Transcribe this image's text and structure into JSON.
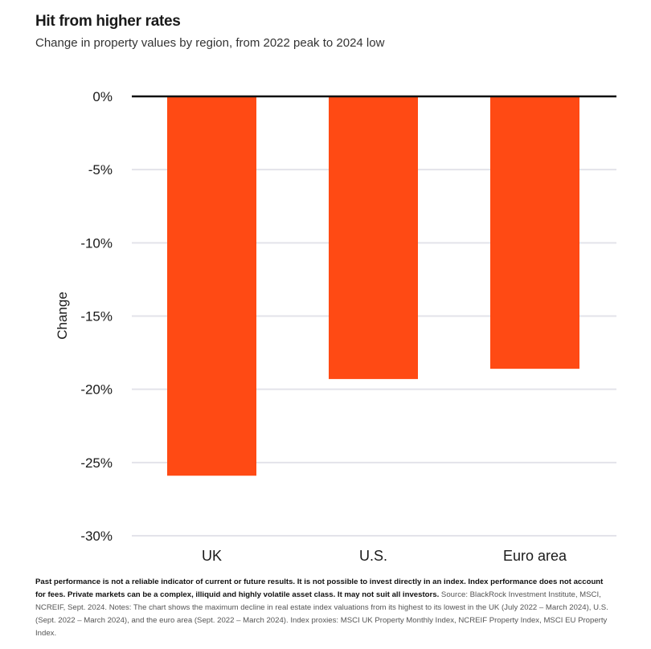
{
  "title": "Hit from higher rates",
  "subtitle": "Change in property values by region, from 2022 peak to 2024 low",
  "chart_data": {
    "type": "bar",
    "title": "Hit from higher rates",
    "subtitle": "Change in property values by region, from 2022 peak to 2024 low",
    "categories": [
      "UK",
      "U.S.",
      "Euro area"
    ],
    "values": [
      -25.9,
      -19.3,
      -18.6
    ],
    "xlabel": "",
    "ylabel": "Change",
    "ylim": [
      -30,
      0
    ],
    "yticks": [
      0,
      -5,
      -10,
      -15,
      -20,
      -25,
      -30
    ],
    "ytick_labels": [
      "0%",
      "-5%",
      "-10%",
      "-15%",
      "-20%",
      "-25%",
      "-30%"
    ],
    "grid": true,
    "bar_color": "#ff4a14",
    "legend": "none"
  },
  "notes": {
    "bold": "Past performance is not a reliable indicator of current or future results. It is not possible to invest directly in an index. Index performance does not account for fees. Private markets can be a complex, illiquid and highly volatile asset class. It may not suit all investors.",
    "regular": " Source: BlackRock Investment Institute, MSCI, NCREIF, Sept. 2024. Notes: The chart shows the maximum decline in real estate index valuations from its highest to its lowest in the UK (July 2022 – March 2024), U.S. (Sept. 2022 – March 2024), and the euro area (Sept. 2022 – March 2024). Index proxies: MSCI UK Property Monthly Index, NCREIF Property Index, MSCI EU Property Index."
  }
}
